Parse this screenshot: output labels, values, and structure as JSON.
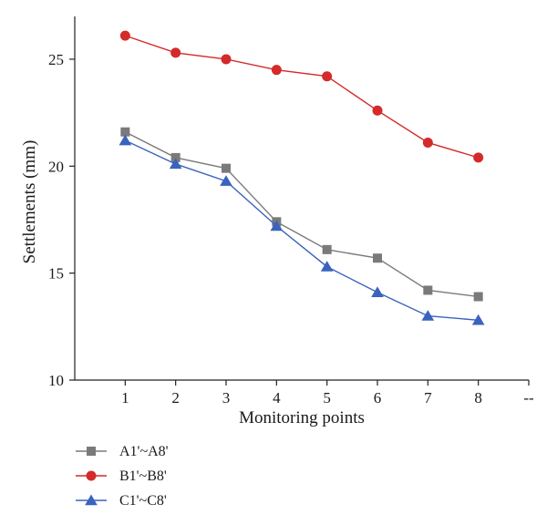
{
  "chart_data": {
    "type": "line",
    "title": "",
    "xlabel": "Monitoring points",
    "ylabel": "Settlements (mm)",
    "x": [
      1,
      2,
      3,
      4,
      5,
      6,
      7,
      8
    ],
    "x_tick_labels": [
      "1",
      "2",
      "3",
      "4",
      "5",
      "6",
      "7",
      "8",
      "--"
    ],
    "y_tick_labels": [
      "10",
      "15",
      "20",
      "25"
    ],
    "y_ticks": [
      10,
      15,
      20,
      25
    ],
    "ylim": [
      10,
      27
    ],
    "xlim": [
      0,
      9
    ],
    "grid": false,
    "legend_position": "bottom-left",
    "series": [
      {
        "name": "A1'~A8'",
        "marker": "square",
        "color": "#7a7a7a",
        "values": [
          21.6,
          20.4,
          19.9,
          17.4,
          16.1,
          15.7,
          14.2,
          13.9
        ]
      },
      {
        "name": "B1'~B8'",
        "marker": "circle",
        "color": "#d42a2a",
        "values": [
          26.1,
          25.3,
          25.0,
          24.5,
          24.2,
          22.6,
          21.1,
          20.4
        ]
      },
      {
        "name": "C1'~C8'",
        "marker": "triangle",
        "color": "#3a63bd",
        "values": [
          21.2,
          20.1,
          19.3,
          17.2,
          15.3,
          14.1,
          13.0,
          12.8
        ]
      }
    ]
  }
}
